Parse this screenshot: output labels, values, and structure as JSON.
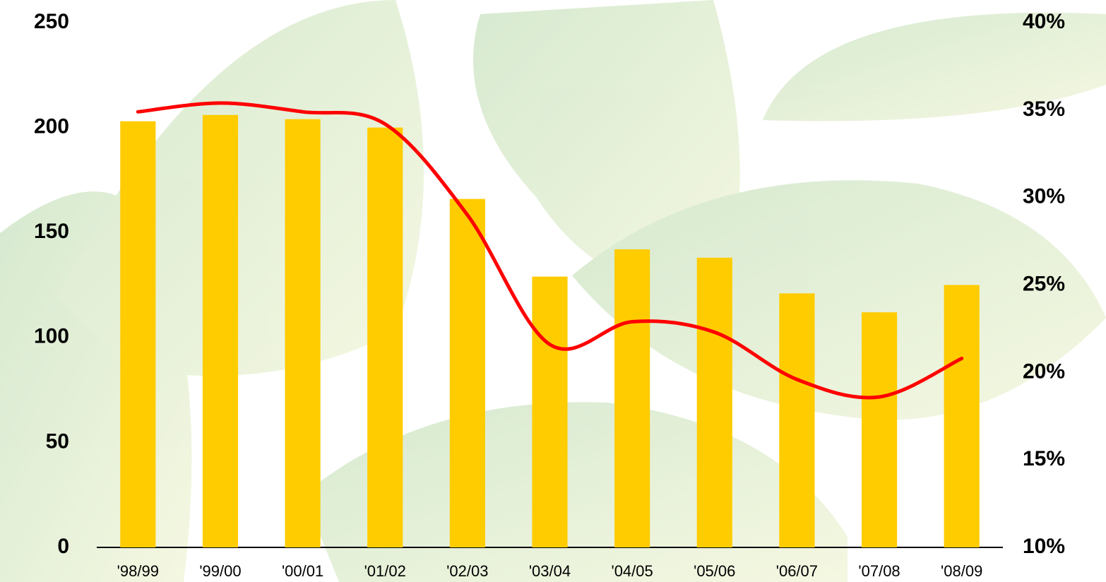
{
  "chart_data": {
    "type": "bar-line",
    "categories": [
      "'98/99",
      "'99/00",
      "'00/01",
      "'01/02",
      "'02/03",
      "'03/04",
      "'04/05",
      "'05/06",
      "'06/07",
      "'07/08",
      "'08/09"
    ],
    "series": [
      {
        "type": "bar",
        "color": "#ffcc00",
        "values": [
          203,
          206,
          204,
          200,
          166,
          129,
          142,
          138,
          121,
          112,
          125
        ]
      },
      {
        "type": "line",
        "axis": "y2",
        "color": "#ff0000",
        "values": [
          34.9,
          35.4,
          34.9,
          34.2,
          29.0,
          21.6,
          22.9,
          22.3,
          19.6,
          18.6,
          20.8
        ]
      }
    ],
    "ylim": [
      0,
      250
    ],
    "yticks": [
      0,
      50,
      100,
      150,
      200,
      250
    ],
    "y2lim": [
      10,
      40
    ],
    "y2ticks": [
      {
        "value": 10,
        "label": "10%"
      },
      {
        "value": 15,
        "label": "15%"
      },
      {
        "value": 20,
        "label": "20%"
      },
      {
        "value": 25,
        "label": "25%"
      },
      {
        "value": 30,
        "label": "30%"
      },
      {
        "value": 35,
        "label": "35%"
      },
      {
        "value": 40,
        "label": "40%"
      }
    ]
  }
}
